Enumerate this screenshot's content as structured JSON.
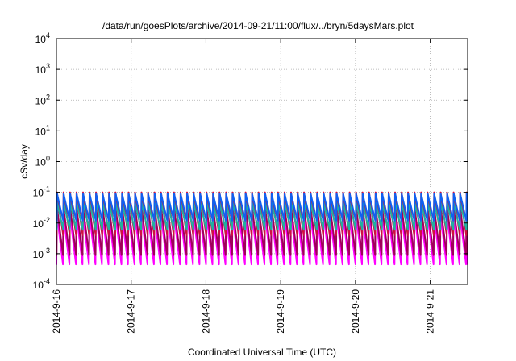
{
  "chart_data": {
    "type": "line",
    "title": "/data/run/goesPlots/archive/2014-09-21/11:00/flux/../bryn/5daysMars.plot",
    "xlabel": "Coordinated Universal Time (UTC)",
    "ylabel": "cSv/day",
    "yscale": "log",
    "ylim": [
      0.0001,
      10000
    ],
    "xlim": [
      0,
      5.5
    ],
    "grid": true,
    "y_ticks": [
      {
        "value": 0.0001,
        "base": "10",
        "exp": "-4"
      },
      {
        "value": 0.001,
        "base": "10",
        "exp": "-3"
      },
      {
        "value": 0.01,
        "base": "10",
        "exp": "-2"
      },
      {
        "value": 0.1,
        "base": "10",
        "exp": "-1"
      },
      {
        "value": 1,
        "base": "10",
        "exp": "0"
      },
      {
        "value": 10,
        "base": "10",
        "exp": "1"
      },
      {
        "value": 100,
        "base": "10",
        "exp": "2"
      },
      {
        "value": 1000,
        "base": "10",
        "exp": "3"
      },
      {
        "value": 10000,
        "base": "10",
        "exp": "4"
      }
    ],
    "x_ticks": [
      {
        "value": 0,
        "label": "2014-9-16"
      },
      {
        "value": 1,
        "label": "2014-9-17"
      },
      {
        "value": 2,
        "label": "2014-9-18"
      },
      {
        "value": 3,
        "label": "2014-9-19"
      },
      {
        "value": 4,
        "label": "2014-9-20"
      },
      {
        "value": 5,
        "label": "2014-9-21"
      }
    ],
    "cycles_per_day": 11.5,
    "series": [
      {
        "color": "#ff00ff",
        "peak": 0.02,
        "trough": 0.00045,
        "phase": 0.0
      },
      {
        "color": "#a0005a",
        "peak": 0.035,
        "trough": 0.0009,
        "phase": 0.02
      },
      {
        "color": "#d01040",
        "peak": 0.1,
        "trough": 0.004,
        "phase": 0.03
      },
      {
        "color": "#20b0a0",
        "peak": 0.045,
        "trough": 0.006,
        "phase": 0.05
      },
      {
        "color": "#1060f0",
        "peak": 0.09,
        "trough": 0.012,
        "phase": 0.04
      }
    ]
  }
}
